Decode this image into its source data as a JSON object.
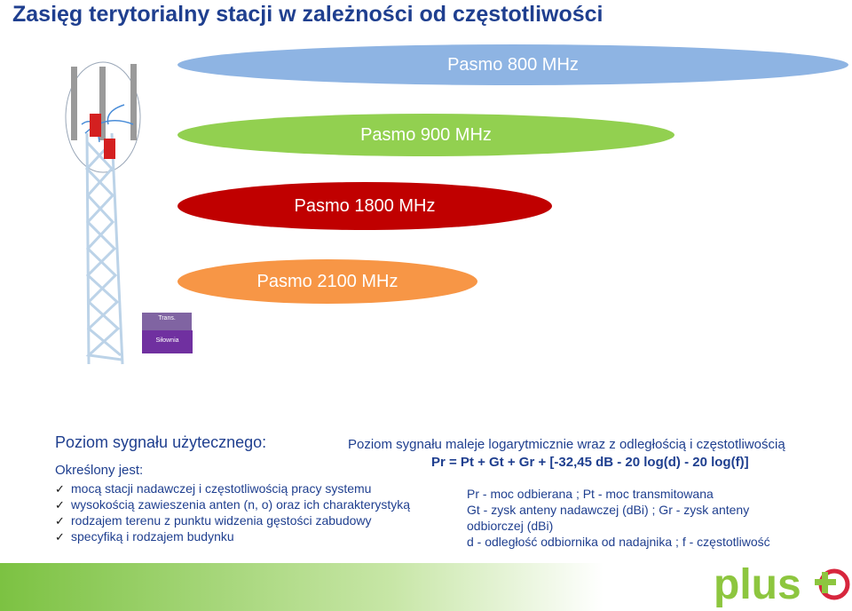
{
  "title": "Zasięg terytorialny stacji w zależności od częstotliwości",
  "bands": [
    {
      "label": "Pasmo 800 MHz",
      "color": "#8eb4e3"
    },
    {
      "label": "Pasmo 900 MHz",
      "color": "#92d050"
    },
    {
      "label": "Pasmo 1800 MHz",
      "color": "#c00000"
    },
    {
      "label": "Pasmo 2100 MHz",
      "color": "#f79646"
    }
  ],
  "tower": {
    "trans_label": "Trans.",
    "silownia_label": "Siłownia"
  },
  "section": {
    "title": "Poziom sygnału użytecznego:",
    "description": "Poziom sygnału maleje logarytmicznie wraz z odległością i częstotliwością",
    "formula": "Pr = Pt + Gt + Gr + [-32,45 dB - 20 log(d) - 20 log(f)]",
    "defined_by": "Określony jest:",
    "factors": [
      "mocą stacji nadawczej i częstotliwością pracy systemu",
      "wysokością zawieszenia anten (n, o) oraz ich charakterystyką",
      "rodzajem terenu z punktu widzenia gęstości zabudowy",
      "specyfiką i rodzajem budynku"
    ]
  },
  "legend": [
    "Pr - moc odbierana ; Pt - moc transmitowana",
    "Gt - zysk anteny nadawczej (dBi) ; Gr - zysk anteny",
    "odbiorczej (dBi)",
    "d - odległość odbiornika od nadajnika ;  f - częstotliwość"
  ],
  "logo": {
    "brand": "plus",
    "color": "#8dc63f"
  }
}
